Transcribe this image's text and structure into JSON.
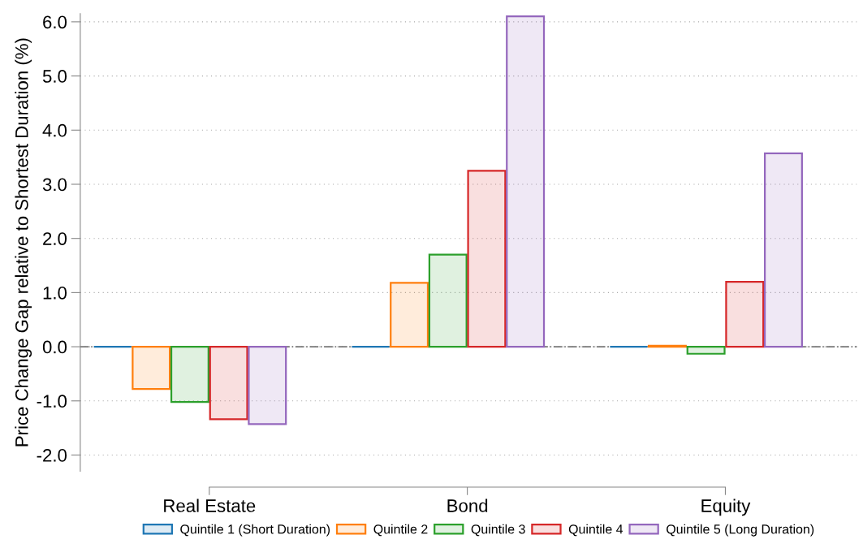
{
  "chart_data": {
    "type": "bar",
    "ylabel": "Price Change Gap relative to Shortest Duration (%)",
    "categories": [
      "Real Estate",
      "Bond",
      "Equity"
    ],
    "series": [
      {
        "name": "Quintile 1 (Short Duration)",
        "color": "#1f77b4",
        "values": [
          0,
          0,
          0
        ]
      },
      {
        "name": "Quintile 2",
        "color": "#ff7f0e",
        "values": [
          -0.78,
          1.18,
          0.02
        ]
      },
      {
        "name": "Quintile 3",
        "color": "#2ca02c",
        "values": [
          -1.02,
          1.7,
          -0.13
        ]
      },
      {
        "name": "Quintile 4",
        "color": "#d62728",
        "values": [
          -1.34,
          3.25,
          1.2
        ]
      },
      {
        "name": "Quintile 5 (Long Duration)",
        "color": "#9467bd",
        "values": [
          -1.43,
          6.1,
          3.57
        ]
      }
    ],
    "ylim": [
      -2.3,
      6.15
    ],
    "yticks": [
      {
        "value": -2,
        "label": "-2.0"
      },
      {
        "value": -1,
        "label": "-1.0"
      },
      {
        "value": 0,
        "label": "0.0"
      },
      {
        "value": 1,
        "label": "1.0"
      },
      {
        "value": 2,
        "label": "2.0"
      },
      {
        "value": 3,
        "label": "3.0"
      },
      {
        "value": 4,
        "label": "4.0"
      },
      {
        "value": 5,
        "label": "5.0"
      },
      {
        "value": 6,
        "label": "6.0"
      }
    ],
    "ref_lines": [
      {
        "axis": "y",
        "value": 0,
        "color": "#777777",
        "line_style": "dashdot"
      }
    ],
    "grid": "y",
    "legend": "bottom"
  }
}
